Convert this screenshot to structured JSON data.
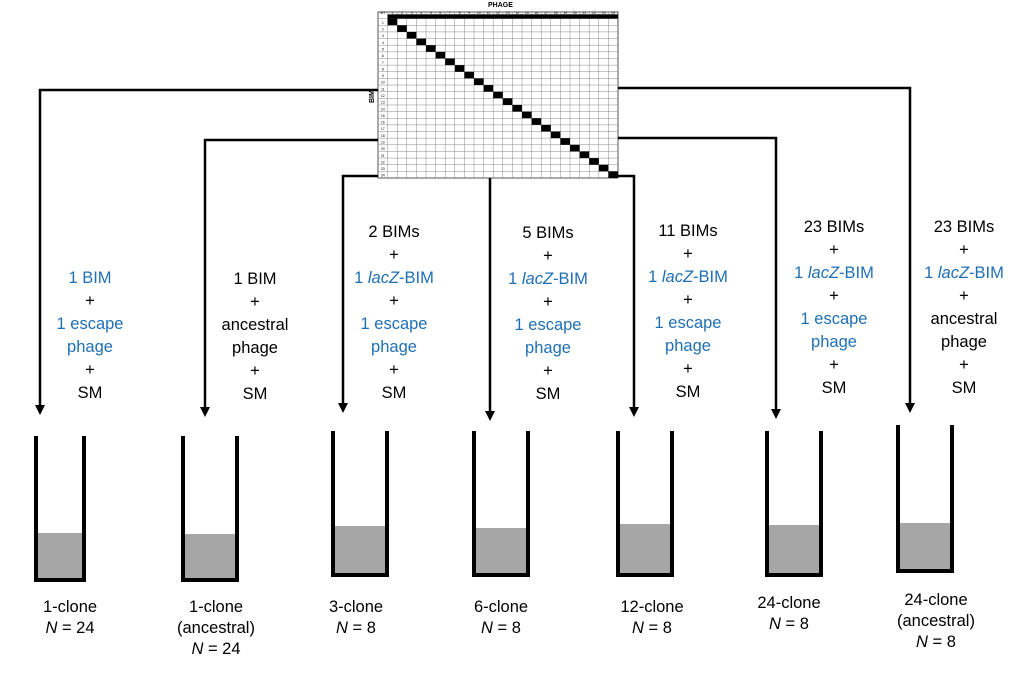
{
  "matrix": {
    "title": "PHAGE",
    "row_axis_label": "BIM",
    "corner_label": "WT",
    "size": 24
  },
  "columns": [
    {
      "lines": [
        {
          "text": "1 BIM",
          "color": "blue"
        },
        {
          "text": "+",
          "color": "black"
        },
        {
          "text": "1 escape",
          "color": "blue"
        },
        {
          "text": "phage",
          "color": "blue"
        },
        {
          "text": "+",
          "color": "black"
        },
        {
          "text": "SM",
          "color": "black"
        }
      ],
      "label": "1-clone",
      "sublabel": "",
      "n_prefix": "N",
      "n_value": "= 24"
    },
    {
      "lines": [
        {
          "text": "1 BIM",
          "color": "black"
        },
        {
          "text": "+",
          "color": "black"
        },
        {
          "text": "ancestral",
          "color": "black"
        },
        {
          "text": "phage",
          "color": "black"
        },
        {
          "text": "+",
          "color": "black"
        },
        {
          "text": "SM",
          "color": "black"
        }
      ],
      "label": "1-clone",
      "sublabel": "(ancestral)",
      "n_prefix": "N",
      "n_value": "= 24"
    },
    {
      "lines": [
        {
          "text": "2 BIMs",
          "color": "black"
        },
        {
          "text": "+",
          "color": "black"
        },
        {
          "text": "1 lacZ-BIM",
          "color": "blue"
        },
        {
          "text": "+",
          "color": "black"
        },
        {
          "text": "1 escape",
          "color": "blue"
        },
        {
          "text": "phage",
          "color": "blue"
        },
        {
          "text": "+",
          "color": "black"
        },
        {
          "text": "SM",
          "color": "black"
        }
      ],
      "label": "3-clone",
      "sublabel": "",
      "n_prefix": "N",
      "n_value": "= 8"
    },
    {
      "lines": [
        {
          "text": "5 BIMs",
          "color": "black"
        },
        {
          "text": "+",
          "color": "black"
        },
        {
          "text": "1 lacZ-BIM",
          "color": "blue"
        },
        {
          "text": "+",
          "color": "black"
        },
        {
          "text": "1 escape",
          "color": "blue"
        },
        {
          "text": "phage",
          "color": "blue"
        },
        {
          "text": "+",
          "color": "black"
        },
        {
          "text": "SM",
          "color": "black"
        }
      ],
      "label": "6-clone",
      "sublabel": "",
      "n_prefix": "N",
      "n_value": "= 8"
    },
    {
      "lines": [
        {
          "text": "11 BIMs",
          "color": "black"
        },
        {
          "text": "+",
          "color": "black"
        },
        {
          "text": "1 lacZ-BIM",
          "color": "blue"
        },
        {
          "text": "+",
          "color": "black"
        },
        {
          "text": "1 escape",
          "color": "blue"
        },
        {
          "text": "phage",
          "color": "blue"
        },
        {
          "text": "+",
          "color": "black"
        },
        {
          "text": "SM",
          "color": "black"
        }
      ],
      "label": "12-clone",
      "sublabel": "",
      "n_prefix": "N",
      "n_value": "= 8"
    },
    {
      "lines": [
        {
          "text": "23 BIMs",
          "color": "black"
        },
        {
          "text": "+",
          "color": "black"
        },
        {
          "text": "1 lacZ-BIM",
          "color": "blue"
        },
        {
          "text": "+",
          "color": "black"
        },
        {
          "text": "1 escape",
          "color": "blue"
        },
        {
          "text": "phage",
          "color": "blue"
        },
        {
          "text": "+",
          "color": "black"
        },
        {
          "text": "SM",
          "color": "black"
        }
      ],
      "label": "24-clone",
      "sublabel": "",
      "n_prefix": "N",
      "n_value": "= 8"
    },
    {
      "lines": [
        {
          "text": "23 BIMs",
          "color": "black"
        },
        {
          "text": "+",
          "color": "black"
        },
        {
          "text": "1 lacZ-BIM",
          "color": "blue"
        },
        {
          "text": "+",
          "color": "black"
        },
        {
          "text": "ancestral",
          "color": "black"
        },
        {
          "text": "phage",
          "color": "black"
        },
        {
          "text": "+",
          "color": "black"
        },
        {
          "text": "SM",
          "color": "black"
        }
      ],
      "label": "24-clone",
      "sublabel": "(ancestral)",
      "n_prefix": "N",
      "n_value": "= 8"
    }
  ],
  "colors": {
    "blue_text": "#1f6fb4",
    "tube_fill": "#a6a6a6",
    "line": "#000000"
  }
}
